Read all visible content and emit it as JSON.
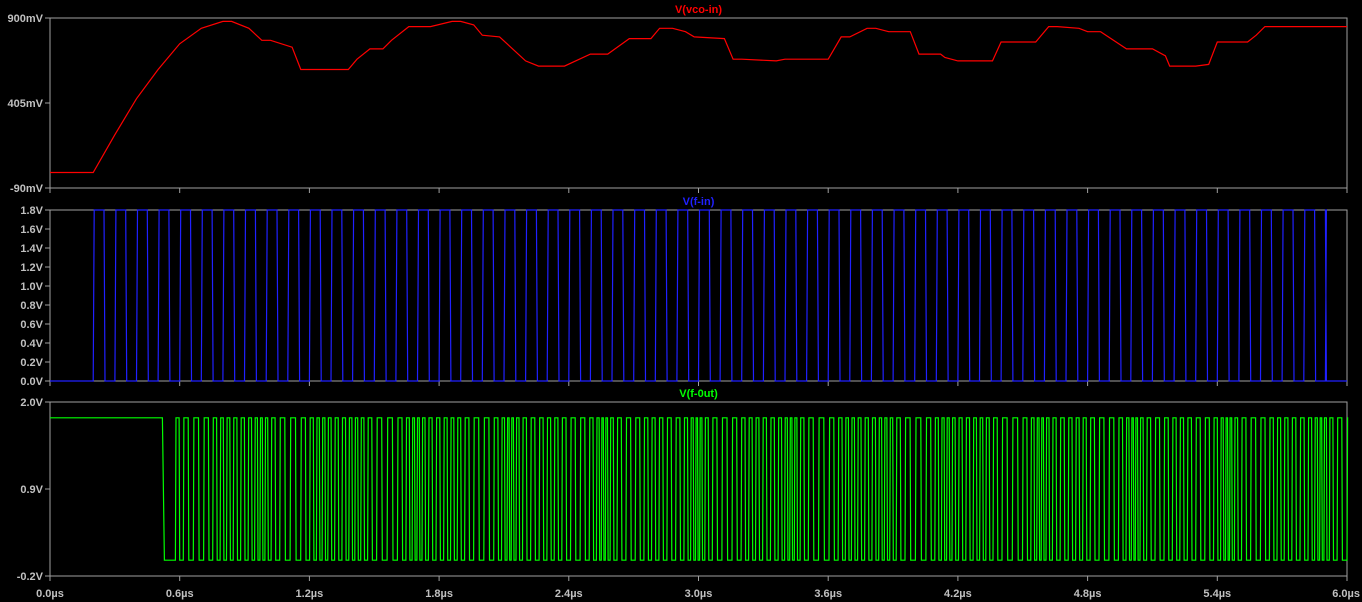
{
  "chart_data": [
    {
      "type": "line",
      "title": "V(vco-in)",
      "color": "#ff0000",
      "ylim": [
        -0.09,
        0.9
      ],
      "xlim": [
        0,
        6.0
      ],
      "yticks": [
        {
          "value": 0.9,
          "label": "900mV"
        },
        {
          "value": 0.405,
          "label": "405mV"
        },
        {
          "value": -0.09,
          "label": "-90mV"
        }
      ],
      "series": [
        {
          "x": [
            0.0,
            0.2,
            0.3,
            0.4,
            0.5,
            0.6,
            0.7,
            0.8,
            0.84,
            0.92,
            0.98,
            1.02,
            1.12,
            1.16,
            1.22,
            1.38,
            1.42,
            1.48,
            1.54,
            1.58,
            1.66,
            1.76,
            1.86,
            1.9,
            1.96,
            2.0,
            2.08,
            2.2,
            2.26,
            2.3,
            2.38,
            2.5,
            2.54,
            2.58,
            2.68,
            2.78,
            2.82,
            2.88,
            2.94,
            2.98,
            3.12,
            3.16,
            3.2,
            3.36,
            3.4,
            3.6,
            3.66,
            3.7,
            3.78,
            3.82,
            3.88,
            3.98,
            4.02,
            4.12,
            4.14,
            4.2,
            4.3,
            4.36,
            4.4,
            4.56,
            4.62,
            4.66,
            4.76,
            4.8,
            4.86,
            4.98,
            5.04,
            5.1,
            5.16,
            5.18,
            5.3,
            5.36,
            5.4,
            5.54,
            5.58,
            5.62,
            5.78,
            5.82,
            5.86,
            6.0
          ],
          "y": [
            0.0,
            0.0,
            0.22,
            0.43,
            0.6,
            0.75,
            0.84,
            0.88,
            0.88,
            0.84,
            0.77,
            0.77,
            0.73,
            0.6,
            0.6,
            0.6,
            0.66,
            0.72,
            0.72,
            0.77,
            0.85,
            0.85,
            0.88,
            0.88,
            0.86,
            0.8,
            0.79,
            0.65,
            0.62,
            0.62,
            0.62,
            0.69,
            0.69,
            0.69,
            0.78,
            0.78,
            0.84,
            0.84,
            0.82,
            0.79,
            0.78,
            0.66,
            0.66,
            0.65,
            0.66,
            0.66,
            0.79,
            0.79,
            0.84,
            0.84,
            0.82,
            0.82,
            0.69,
            0.69,
            0.67,
            0.65,
            0.65,
            0.65,
            0.76,
            0.76,
            0.85,
            0.85,
            0.84,
            0.82,
            0.82,
            0.72,
            0.72,
            0.72,
            0.68,
            0.62,
            0.62,
            0.63,
            0.76,
            0.76,
            0.8,
            0.85,
            0.85,
            0.85,
            0.85,
            0.85
          ]
        }
      ]
    },
    {
      "type": "line",
      "title": "V(f-in)",
      "color": "#2020ff",
      "ylim": [
        0.0,
        1.8
      ],
      "xlim": [
        0,
        6.0
      ],
      "yticks": [
        {
          "value": 1.8,
          "label": "1.8V"
        },
        {
          "value": 1.6,
          "label": "1.6V"
        },
        {
          "value": 1.4,
          "label": "1.4V"
        },
        {
          "value": 1.2,
          "label": "1.2V"
        },
        {
          "value": 1.0,
          "label": "1.0V"
        },
        {
          "value": 0.8,
          "label": "0.8V"
        },
        {
          "value": 0.6,
          "label": "0.6V"
        },
        {
          "value": 0.4,
          "label": "0.4V"
        },
        {
          "value": 0.2,
          "label": "0.2V"
        },
        {
          "value": 0.0,
          "label": "0.0V"
        }
      ],
      "signal": {
        "kind": "square",
        "low": 0.0,
        "high": 1.8,
        "period": 0.1,
        "start_high": 0.0,
        "high_len": 0.05,
        "end": 5.9
      }
    },
    {
      "type": "line",
      "title": "V(f-0ut)",
      "color": "#00ff00",
      "ylim": [
        -0.2,
        2.0
      ],
      "xlim": [
        0,
        6.0
      ],
      "yticks": [
        {
          "value": 2.0,
          "label": "2.0V"
        },
        {
          "value": 0.9,
          "label": "0.9V"
        },
        {
          "value": -0.2,
          "label": "-0.2V"
        }
      ],
      "signal": {
        "kind": "vco",
        "low": 0.0,
        "high": 1.8,
        "initial_high_until": 0.52,
        "first_rise": 0.58,
        "min_period": 0.018,
        "max_period": 0.05
      }
    }
  ],
  "x_axis": {
    "ticks": [
      {
        "value": 0.0,
        "label": "0.0µs"
      },
      {
        "value": 0.6,
        "label": "0.6µs"
      },
      {
        "value": 1.2,
        "label": "1.2µs"
      },
      {
        "value": 1.8,
        "label": "1.8µs"
      },
      {
        "value": 2.4,
        "label": "2.4µs"
      },
      {
        "value": 3.0,
        "label": "3.0µs"
      },
      {
        "value": 3.6,
        "label": "3.6µs"
      },
      {
        "value": 4.2,
        "label": "4.2µs"
      },
      {
        "value": 4.8,
        "label": "4.8µs"
      },
      {
        "value": 5.4,
        "label": "5.4µs"
      },
      {
        "value": 6.0,
        "label": "6.0µs"
      }
    ]
  },
  "colors": {
    "background": "#000000",
    "frame": "#a0a0a0",
    "tick_text": "#c0c0c0"
  }
}
